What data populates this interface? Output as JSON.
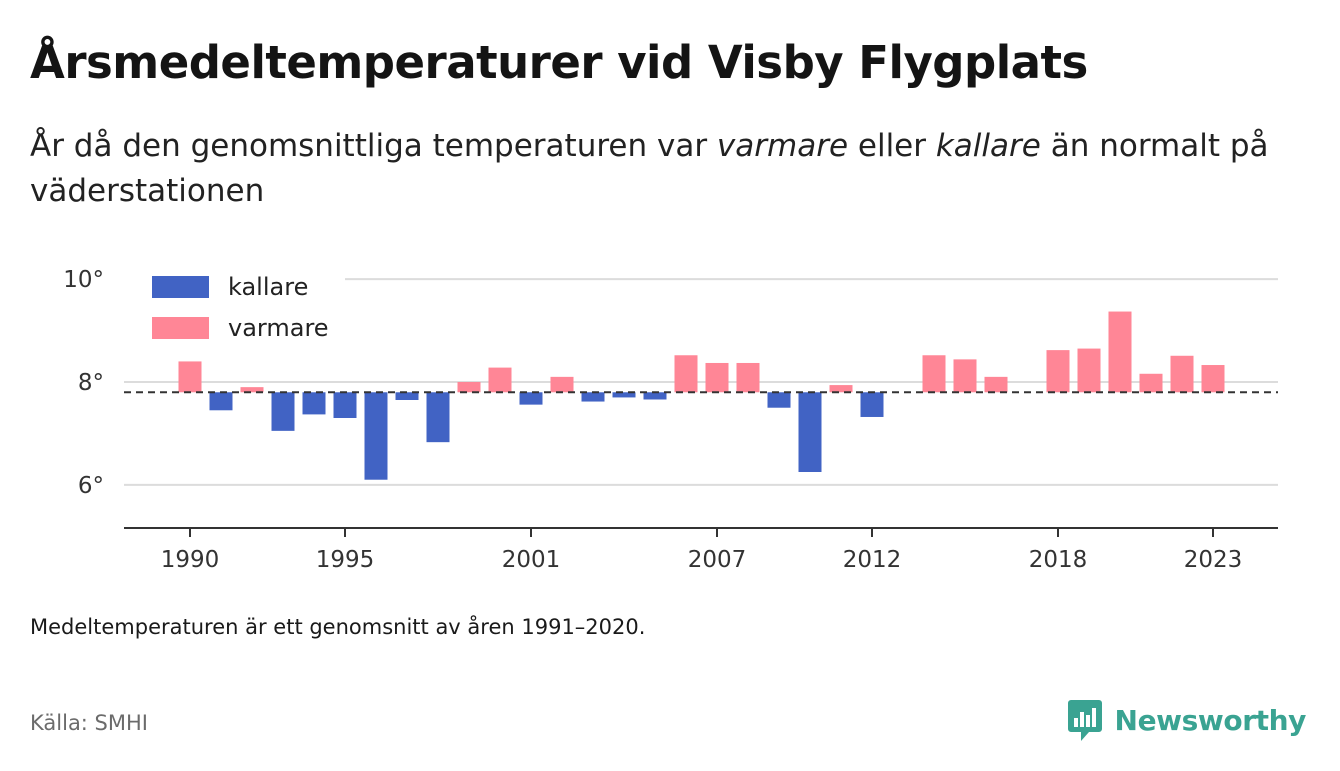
{
  "title": "Årsmedeltemperaturer vid Visby Flygplats",
  "subtitle": {
    "part1": "År då den genomsnittliga temperaturen var ",
    "warmer": "varmare",
    "part2": " eller ",
    "colder": "kallare",
    "part3": " än normalt på väderstationen"
  },
  "note": "Medeltemperaturen är ett genomsnitt av åren 1991–2020.",
  "source": "Källa: SMHI",
  "brand": {
    "name": "Newsworthy",
    "icon": "newsworthy-logo-icon",
    "color": "#3aa392"
  },
  "chart_data": {
    "type": "bar",
    "baseline": 7.8,
    "baseline_style": "dashed",
    "ylim": [
      5.2,
      10.1
    ],
    "yticks": [
      6,
      8,
      10
    ],
    "ytick_labels": [
      "6°",
      "8°",
      "10°"
    ],
    "xticks": [
      1990,
      1995,
      2001,
      2007,
      2012,
      2018,
      2023
    ],
    "grid": true,
    "legend_position": "top-left",
    "colors": {
      "kallare": "#4163c4",
      "varmare": "#ff8696"
    },
    "legend": [
      {
        "key": "kallare",
        "label": "kallare"
      },
      {
        "key": "varmare",
        "label": "varmare"
      }
    ],
    "years": [
      1990,
      1991,
      1992,
      1993,
      1994,
      1995,
      1996,
      1997,
      1998,
      1999,
      2000,
      2001,
      2002,
      2003,
      2004,
      2005,
      2006,
      2007,
      2008,
      2009,
      2010,
      2011,
      2012,
      2013,
      2014,
      2015,
      2016,
      2017,
      2018,
      2019,
      2020,
      2021,
      2022,
      2023
    ],
    "values": [
      8.4,
      7.45,
      7.9,
      7.05,
      7.37,
      7.3,
      6.1,
      7.65,
      6.83,
      8.0,
      8.28,
      7.56,
      8.1,
      7.62,
      7.7,
      7.66,
      8.52,
      8.37,
      8.37,
      7.5,
      6.25,
      7.94,
      7.32,
      null,
      8.52,
      8.44,
      8.1,
      null,
      8.62,
      8.65,
      9.37,
      8.16,
      8.51,
      8.33
    ]
  }
}
